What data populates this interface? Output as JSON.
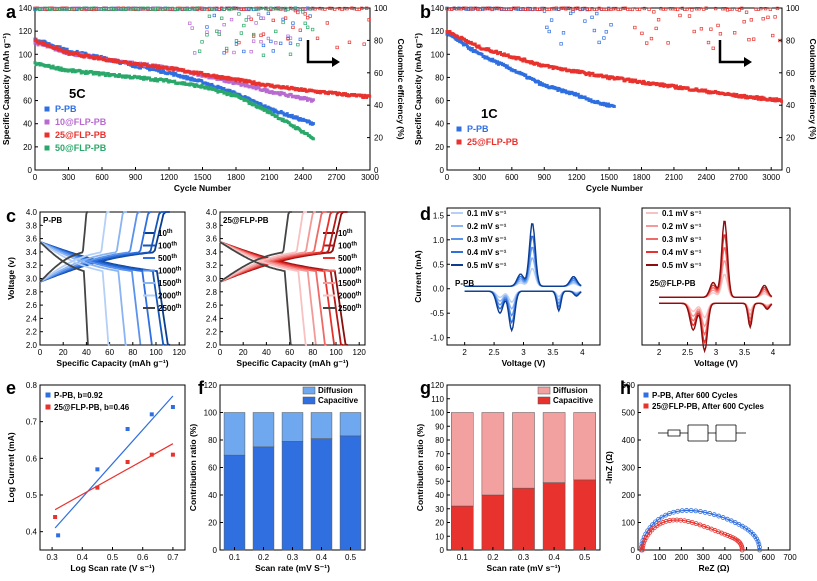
{
  "colors": {
    "blue": "#2f6fe0",
    "blue_light": "#6fa8ee",
    "red": "#e8322e",
    "red_light": "#f3a0a0",
    "purple": "#b86ad0",
    "green": "#2aa86a",
    "dark": "#333333"
  },
  "chart_data": [
    {
      "id": "a",
      "type": "scatter",
      "panel_label": "a",
      "note": "5C",
      "xlabel": "Cycle Number",
      "ylabel": "Specific Capacity (mAh g⁻¹)",
      "y2label": "Coulombic efficiency (%)",
      "xlim": [
        0,
        3000
      ],
      "ylim": [
        0,
        140
      ],
      "y2lim": [
        0,
        100
      ],
      "xticks": [
        0,
        300,
        600,
        900,
        1200,
        1500,
        1800,
        2100,
        2400,
        2700,
        3000
      ],
      "yticks": [
        0,
        20,
        40,
        60,
        80,
        100,
        120,
        140
      ],
      "y2ticks": [
        0,
        20,
        40,
        60,
        80,
        100
      ],
      "series": [
        {
          "name": "P-PB",
          "color": "blue",
          "x": [
            0,
            300,
            600,
            900,
            1200,
            1500,
            1800,
            2100,
            2400,
            2500
          ],
          "y": [
            113,
            103,
            97,
            90,
            84,
            76,
            66,
            53,
            43,
            40
          ]
        },
        {
          "name": "10@FLP-PB",
          "color": "purple",
          "x": [
            0,
            300,
            600,
            900,
            1200,
            1500,
            1800,
            2100,
            2400,
            2500
          ],
          "y": [
            110,
            101,
            96,
            92,
            88,
            82,
            75,
            68,
            62,
            60
          ]
        },
        {
          "name": "25@FLP-PB",
          "color": "red",
          "x": [
            0,
            300,
            600,
            900,
            1200,
            1500,
            1800,
            2100,
            2400,
            2700,
            3000
          ],
          "y": [
            112,
            101,
            96,
            92,
            88,
            83,
            78,
            73,
            69,
            66,
            63
          ]
        },
        {
          "name": "50@FLP-PB",
          "color": "green",
          "x": [
            0,
            300,
            600,
            900,
            1200,
            1500,
            1800,
            2100,
            2400,
            2500
          ],
          "y": [
            92,
            86,
            83,
            80,
            77,
            72,
            64,
            50,
            33,
            27
          ]
        }
      ],
      "ce": {
        "name": "Coulombic efficiency",
        "x": [
          0,
          3000
        ],
        "y": [
          100,
          100
        ]
      }
    },
    {
      "id": "b",
      "type": "scatter",
      "panel_label": "b",
      "note": "1C",
      "xlabel": "Cycle Number",
      "ylabel": "Specific Capacity (mAh g⁻¹)",
      "y2label": "Coulombic efficiency (%)",
      "xlim": [
        0,
        3100
      ],
      "ylim": [
        0,
        140
      ],
      "y2lim": [
        0,
        100
      ],
      "xticks": [
        0,
        300,
        600,
        900,
        1200,
        1500,
        1800,
        2100,
        2400,
        2700,
        3000
      ],
      "yticks": [
        0,
        20,
        40,
        60,
        80,
        100,
        120,
        140
      ],
      "y2ticks": [
        0,
        20,
        40,
        60,
        80,
        100
      ],
      "series": [
        {
          "name": "P-PB",
          "color": "blue",
          "x": [
            0,
            300,
            600,
            900,
            1200,
            1400,
            1550
          ],
          "y": [
            118,
            100,
            87,
            73,
            65,
            58,
            55
          ]
        },
        {
          "name": "25@FLP-PB",
          "color": "red",
          "x": [
            0,
            300,
            600,
            900,
            1200,
            1500,
            1800,
            2100,
            2400,
            2700,
            3100
          ],
          "y": [
            120,
            106,
            98,
            90,
            85,
            80,
            76,
            72,
            68,
            64,
            60
          ]
        }
      ]
    },
    {
      "id": "c1",
      "type": "line",
      "panel_label": "c",
      "note": "P-PB",
      "xlabel": "Specific Capacity (mAh g⁻¹)",
      "ylabel": "Voltage (v)",
      "xlim": [
        0,
        125
      ],
      "ylim": [
        2.0,
        4.0
      ],
      "xticks": [
        0,
        20,
        40,
        60,
        80,
        100,
        120
      ],
      "yticks": [
        2.0,
        2.2,
        2.4,
        2.6,
        2.8,
        3.0,
        3.2,
        3.4,
        3.6,
        3.8,
        4.0
      ],
      "series": [
        {
          "name": "10",
          "sup": "th",
          "capacity": 112
        },
        {
          "name": "100",
          "sup": "th",
          "capacity": 108
        },
        {
          "name": "500",
          "sup": "th",
          "capacity": 98
        },
        {
          "name": "1000",
          "sup": "th",
          "capacity": 88
        },
        {
          "name": "1500",
          "sup": "th",
          "capacity": 75
        },
        {
          "name": "2000",
          "sup": "th",
          "capacity": 60
        },
        {
          "name": "2500",
          "sup": "th",
          "capacity": 42
        }
      ]
    },
    {
      "id": "c2",
      "type": "line",
      "panel_label": "",
      "note": "25@FLP-PB",
      "xlabel": "Specific Capacity (mAh g⁻¹)",
      "ylabel": "",
      "xlim": [
        0,
        125
      ],
      "ylim": [
        2.0,
        4.0
      ],
      "xticks": [
        0,
        20,
        40,
        60,
        80,
        100,
        120
      ],
      "yticks": [
        2.0,
        2.2,
        2.4,
        2.6,
        2.8,
        3.0,
        3.2,
        3.4,
        3.6,
        3.8,
        4.0
      ],
      "series": [
        {
          "name": "10",
          "sup": "th",
          "capacity": 110
        },
        {
          "name": "100",
          "sup": "th",
          "capacity": 106
        },
        {
          "name": "500",
          "sup": "th",
          "capacity": 100
        },
        {
          "name": "1000",
          "sup": "th",
          "capacity": 92
        },
        {
          "name": "1500",
          "sup": "th",
          "capacity": 84
        },
        {
          "name": "2000",
          "sup": "th",
          "capacity": 75
        },
        {
          "name": "2500",
          "sup": "th",
          "capacity": 62
        }
      ]
    },
    {
      "id": "d1",
      "type": "line",
      "panel_label": "d",
      "note": "P-PB",
      "xlabel": "Voltage (V)",
      "ylabel": "Current (mA)",
      "xlim": [
        1.7,
        4.3
      ],
      "ylim": [
        -1.15,
        1.65
      ],
      "xticks": [
        2.0,
        2.5,
        3.0,
        3.5,
        4.0
      ],
      "yticks": [
        -1.0,
        -0.5,
        0.0,
        0.5,
        1.0,
        1.5
      ],
      "series": [
        {
          "name": "0.1 mV s⁻¹",
          "scale": 0.28
        },
        {
          "name": "0.2 mV s⁻¹",
          "scale": 0.45
        },
        {
          "name": "0.3 mV s⁻¹",
          "scale": 0.62
        },
        {
          "name": "0.4 mV s⁻¹",
          "scale": 0.8
        },
        {
          "name": "0.5 mV s⁻¹",
          "scale": 1.0
        }
      ]
    },
    {
      "id": "d2",
      "type": "line",
      "panel_label": "",
      "note": "25@FLP-PB",
      "xlabel": "Voltage (V)",
      "ylabel": "",
      "xlim": [
        1.7,
        4.3
      ],
      "ylim": [
        -0.75,
        1.55
      ],
      "xticks": [
        2.0,
        2.5,
        3.0,
        3.5,
        4.0
      ],
      "yticks": [],
      "series": [
        {
          "name": "0.1 mV s⁻¹",
          "scale": 0.3
        },
        {
          "name": "0.2 mV s⁻¹",
          "scale": 0.48
        },
        {
          "name": "0.3 mV s⁻¹",
          "scale": 0.65
        },
        {
          "name": "0.4 mV s⁻¹",
          "scale": 0.82
        },
        {
          "name": "0.5 mV s⁻¹",
          "scale": 1.0
        }
      ]
    },
    {
      "id": "e",
      "type": "scatter",
      "panel_label": "e",
      "xlabel": "Log Scan rate (V s⁻¹)",
      "ylabel": "Log Current (mA)",
      "xlim": [
        0.26,
        0.74
      ],
      "ylim": [
        0.35,
        0.8
      ],
      "xticks": [
        0.3,
        0.4,
        0.5,
        0.6,
        0.7
      ],
      "yticks": [
        0.4,
        0.5,
        0.6,
        0.7,
        0.8
      ],
      "series": [
        {
          "name": "P-PB, b=0.92",
          "color": "blue",
          "x": [
            0.32,
            0.45,
            0.55,
            0.63,
            0.7
          ],
          "y": [
            0.39,
            0.57,
            0.68,
            0.72,
            0.74
          ]
        },
        {
          "name": "25@FLP-PB, b=0.46",
          "color": "red",
          "x": [
            0.31,
            0.45,
            0.55,
            0.63,
            0.7
          ],
          "y": [
            0.44,
            0.52,
            0.59,
            0.61,
            0.61
          ]
        }
      ],
      "fits": [
        {
          "color": "blue",
          "x": [
            0.31,
            0.7
          ],
          "y": [
            0.41,
            0.77
          ]
        },
        {
          "color": "red",
          "x": [
            0.31,
            0.7
          ],
          "y": [
            0.46,
            0.64
          ]
        }
      ]
    },
    {
      "id": "f",
      "type": "bar",
      "panel_label": "f",
      "xlabel": "Scan rate (mV S⁻¹)",
      "ylabel": "Contribution ratio (%)",
      "categories": [
        "0.1",
        "0.2",
        "0.3",
        "0.4",
        "0.5"
      ],
      "ylim": [
        0,
        120
      ],
      "yticks": [
        0,
        20,
        40,
        60,
        80,
        100,
        120
      ],
      "series": [
        {
          "name": "Capacitive",
          "color": "blue",
          "values": [
            69,
            75,
            79,
            81,
            83
          ]
        },
        {
          "name": "Diffusion",
          "color": "blue_light",
          "values": [
            31,
            25,
            21,
            19,
            17
          ]
        }
      ]
    },
    {
      "id": "g",
      "type": "bar",
      "panel_label": "g",
      "xlabel": "Scan rate (mV s⁻¹)",
      "ylabel": "Contribution ratio (%)",
      "categories": [
        "0.1",
        "0.2",
        "0.3",
        "0.4",
        "0.5"
      ],
      "ylim": [
        0,
        120
      ],
      "yticks": [
        0,
        10,
        20,
        30,
        40,
        50,
        60,
        70,
        80,
        90,
        100,
        110,
        120
      ],
      "series": [
        {
          "name": "Capacitive",
          "color": "red",
          "values": [
            32,
            40,
            45,
            49,
            51
          ]
        },
        {
          "name": "Diffusion",
          "color": "red_light",
          "values": [
            68,
            60,
            55,
            51,
            49
          ]
        }
      ]
    },
    {
      "id": "h",
      "type": "scatter",
      "panel_label": "h",
      "xlabel": "ReZ (Ω)",
      "ylabel": "-ImZ (Ω)",
      "xlim": [
        0,
        700
      ],
      "ylim": [
        0,
        600
      ],
      "xticks": [
        0,
        100,
        200,
        300,
        400,
        500,
        600,
        700
      ],
      "yticks": [
        0,
        100,
        200,
        300,
        400,
        500,
        600
      ],
      "series": [
        {
          "name": "P-PB, After 600 Cycles",
          "color": "blue",
          "r1": 15,
          "r2": 560,
          "peak": 140
        },
        {
          "name": "25@FLP-PB, After 600 Cycles",
          "color": "red",
          "r1": 20,
          "r2": 480,
          "peak": 100
        }
      ]
    }
  ]
}
